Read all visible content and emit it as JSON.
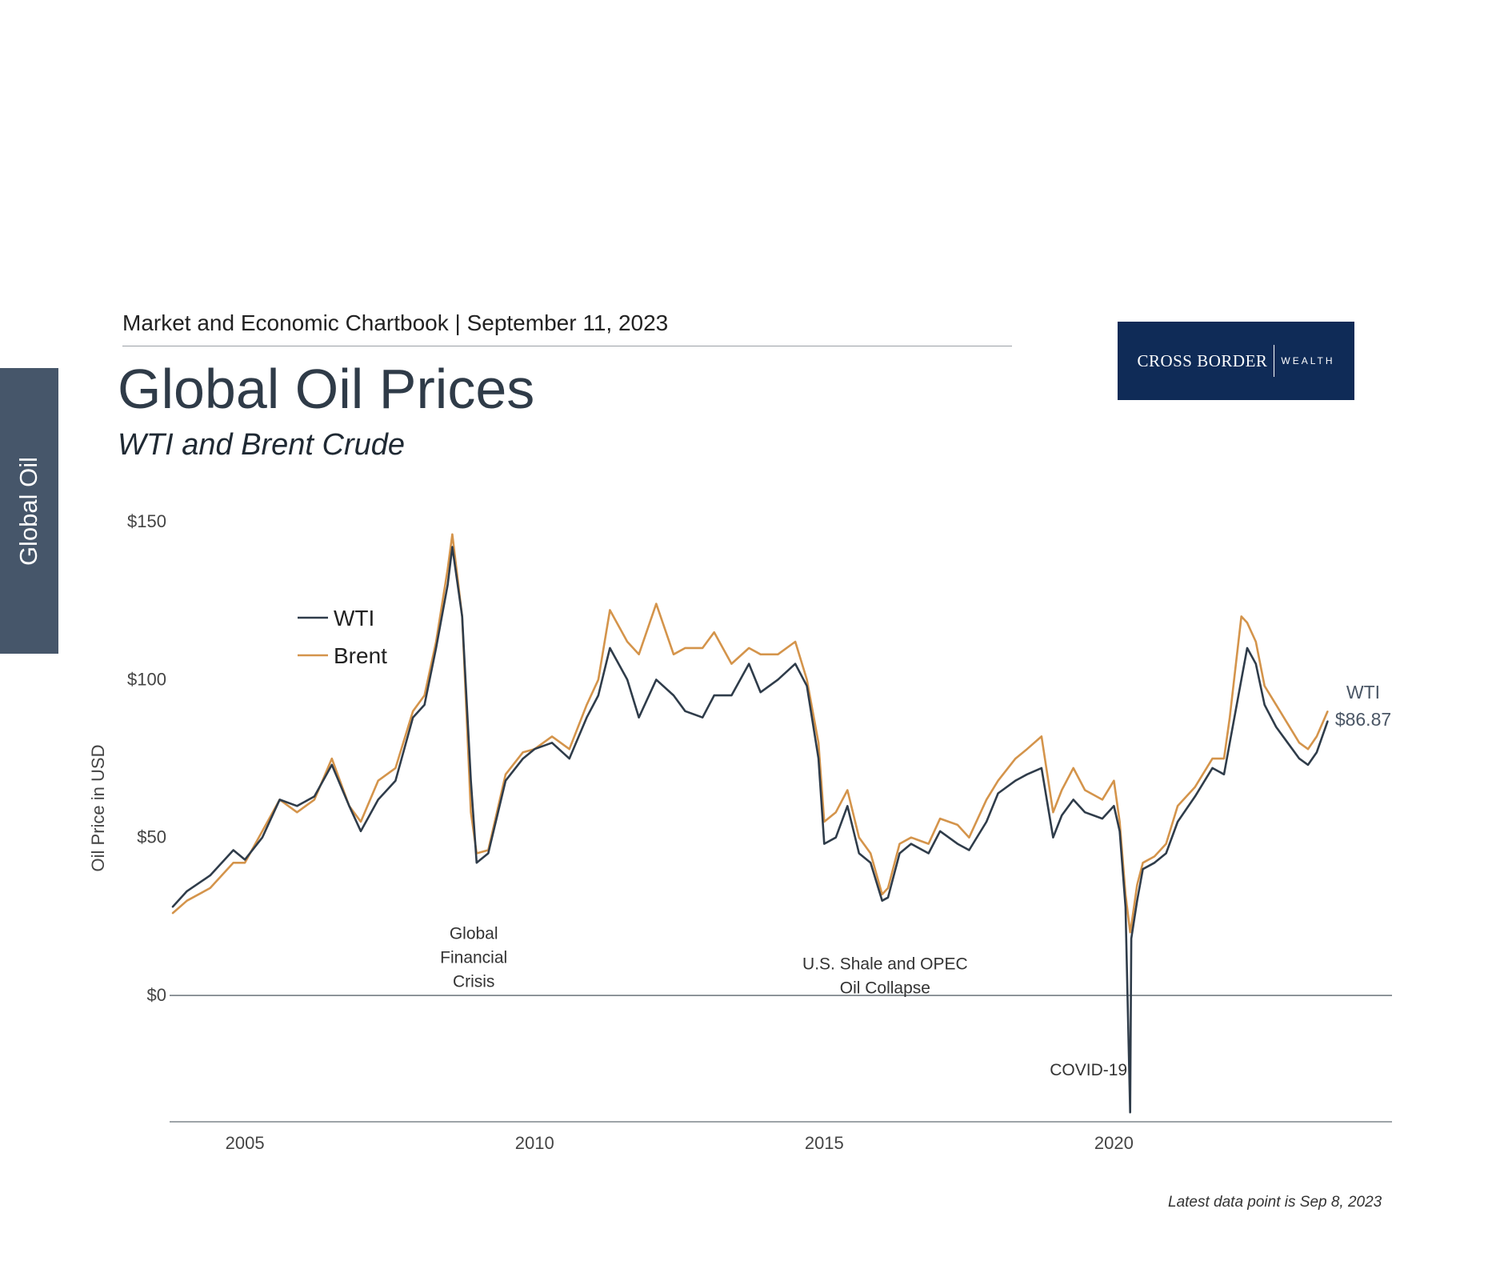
{
  "side_tab": {
    "label": "Global Oil"
  },
  "header": {
    "text": "Market and Economic Chartbook | September 11, 2023"
  },
  "title": "Global Oil Prices",
  "subtitle": "WTI and Brent Crude",
  "logo": {
    "main": "CROSS BORDER",
    "sub": "WEALTH"
  },
  "footnote": "Latest data point is Sep 8, 2023",
  "colors": {
    "wti": "#2f3c4a",
    "brent": "#d4944b",
    "axis": "#7f868c",
    "side_tab": "#46566a",
    "logo_bg": "#0f2b57"
  },
  "chart_data": {
    "type": "line",
    "ylabel": "Oil Price in USD",
    "xlabel": "",
    "xlim": [
      2003.7,
      2024.8
    ],
    "ylim": [
      -40,
      150
    ],
    "y_ticks": [
      {
        "value": 0,
        "label": "$0"
      },
      {
        "value": 50,
        "label": "$50"
      },
      {
        "value": 100,
        "label": "$100"
      },
      {
        "value": 150,
        "label": "$150"
      }
    ],
    "x_ticks": [
      {
        "value": 2005,
        "label": "2005"
      },
      {
        "value": 2010,
        "label": "2010"
      },
      {
        "value": 2015,
        "label": "2015"
      },
      {
        "value": 2020,
        "label": "2020"
      }
    ],
    "legend": {
      "position": "top-left"
    },
    "series": [
      {
        "name": "WTI",
        "key": "wti",
        "x": [
          2003.75,
          2004.0,
          2004.4,
          2004.8,
          2005.0,
          2005.3,
          2005.6,
          2005.9,
          2006.2,
          2006.5,
          2006.8,
          2007.0,
          2007.3,
          2007.6,
          2007.9,
          2008.1,
          2008.3,
          2008.5,
          2008.58,
          2008.75,
          2008.9,
          2009.0,
          2009.2,
          2009.5,
          2009.8,
          2010.0,
          2010.3,
          2010.6,
          2010.9,
          2011.1,
          2011.3,
          2011.6,
          2011.8,
          2012.1,
          2012.4,
          2012.6,
          2012.9,
          2013.1,
          2013.4,
          2013.7,
          2013.9,
          2014.2,
          2014.5,
          2014.7,
          2014.9,
          2015.0,
          2015.2,
          2015.4,
          2015.6,
          2015.8,
          2016.0,
          2016.1,
          2016.3,
          2016.5,
          2016.8,
          2017.0,
          2017.3,
          2017.5,
          2017.8,
          2018.0,
          2018.3,
          2018.5,
          2018.75,
          2018.95,
          2019.1,
          2019.3,
          2019.5,
          2019.8,
          2020.0,
          2020.1,
          2020.2,
          2020.28,
          2020.3,
          2020.4,
          2020.5,
          2020.7,
          2020.9,
          2021.1,
          2021.4,
          2021.7,
          2021.9,
          2022.0,
          2022.2,
          2022.3,
          2022.45,
          2022.6,
          2022.8,
          2023.0,
          2023.2,
          2023.35,
          2023.5,
          2023.69
        ],
        "y": [
          28,
          33,
          38,
          46,
          43,
          50,
          62,
          60,
          63,
          73,
          60,
          52,
          62,
          68,
          88,
          92,
          110,
          130,
          142,
          120,
          68,
          42,
          45,
          68,
          75,
          78,
          80,
          75,
          88,
          95,
          110,
          100,
          88,
          100,
          95,
          90,
          88,
          95,
          95,
          105,
          96,
          100,
          105,
          98,
          75,
          48,
          50,
          60,
          45,
          42,
          30,
          31,
          45,
          48,
          45,
          52,
          48,
          46,
          55,
          64,
          68,
          70,
          72,
          50,
          57,
          62,
          58,
          56,
          60,
          52,
          28,
          -37,
          18,
          30,
          40,
          42,
          45,
          55,
          63,
          72,
          70,
          80,
          100,
          110,
          105,
          92,
          85,
          80,
          75,
          73,
          77,
          86.87
        ]
      },
      {
        "name": "Brent",
        "key": "brent",
        "x": [
          2003.75,
          2004.0,
          2004.4,
          2004.8,
          2005.0,
          2005.3,
          2005.6,
          2005.9,
          2006.2,
          2006.5,
          2006.8,
          2007.0,
          2007.3,
          2007.6,
          2007.9,
          2008.1,
          2008.3,
          2008.5,
          2008.58,
          2008.75,
          2008.9,
          2009.0,
          2009.2,
          2009.5,
          2009.8,
          2010.0,
          2010.3,
          2010.6,
          2010.9,
          2011.1,
          2011.3,
          2011.6,
          2011.8,
          2012.1,
          2012.4,
          2012.6,
          2012.9,
          2013.1,
          2013.4,
          2013.7,
          2013.9,
          2014.2,
          2014.5,
          2014.7,
          2014.9,
          2015.0,
          2015.2,
          2015.4,
          2015.6,
          2015.8,
          2016.0,
          2016.1,
          2016.3,
          2016.5,
          2016.8,
          2017.0,
          2017.3,
          2017.5,
          2017.8,
          2018.0,
          2018.3,
          2018.5,
          2018.75,
          2018.95,
          2019.1,
          2019.3,
          2019.5,
          2019.8,
          2020.0,
          2020.1,
          2020.2,
          2020.28,
          2020.3,
          2020.4,
          2020.5,
          2020.7,
          2020.9,
          2021.1,
          2021.4,
          2021.7,
          2021.9,
          2022.0,
          2022.2,
          2022.3,
          2022.45,
          2022.6,
          2022.8,
          2023.0,
          2023.2,
          2023.35,
          2023.5,
          2023.69
        ],
        "y": [
          26,
          30,
          34,
          42,
          42,
          52,
          62,
          58,
          62,
          75,
          60,
          55,
          68,
          72,
          90,
          95,
          112,
          135,
          146,
          120,
          58,
          45,
          46,
          70,
          77,
          78,
          82,
          78,
          92,
          100,
          122,
          112,
          108,
          124,
          108,
          110,
          110,
          115,
          105,
          110,
          108,
          108,
          112,
          100,
          80,
          55,
          58,
          65,
          50,
          45,
          32,
          34,
          48,
          50,
          48,
          56,
          54,
          50,
          62,
          68,
          75,
          78,
          82,
          58,
          65,
          72,
          65,
          62,
          68,
          55,
          32,
          20,
          22,
          35,
          42,
          44,
          48,
          60,
          66,
          75,
          75,
          88,
          120,
          118,
          112,
          98,
          92,
          86,
          80,
          78,
          82,
          90
        ]
      }
    ],
    "annotations": [
      {
        "x": 2008.95,
        "y": 28,
        "lines": [
          "Global",
          "Financial",
          "Crisis"
        ]
      },
      {
        "x": 2016.05,
        "y": 24,
        "lines": [
          "U.S. Shale and OPEC",
          "Oil Collapse"
        ]
      },
      {
        "x": 2020.28,
        "y": -37,
        "lines": [
          "COVID-19"
        ]
      }
    ],
    "end_label": {
      "series": "WTI",
      "lines": [
        "WTI",
        "$86.87"
      ]
    }
  }
}
